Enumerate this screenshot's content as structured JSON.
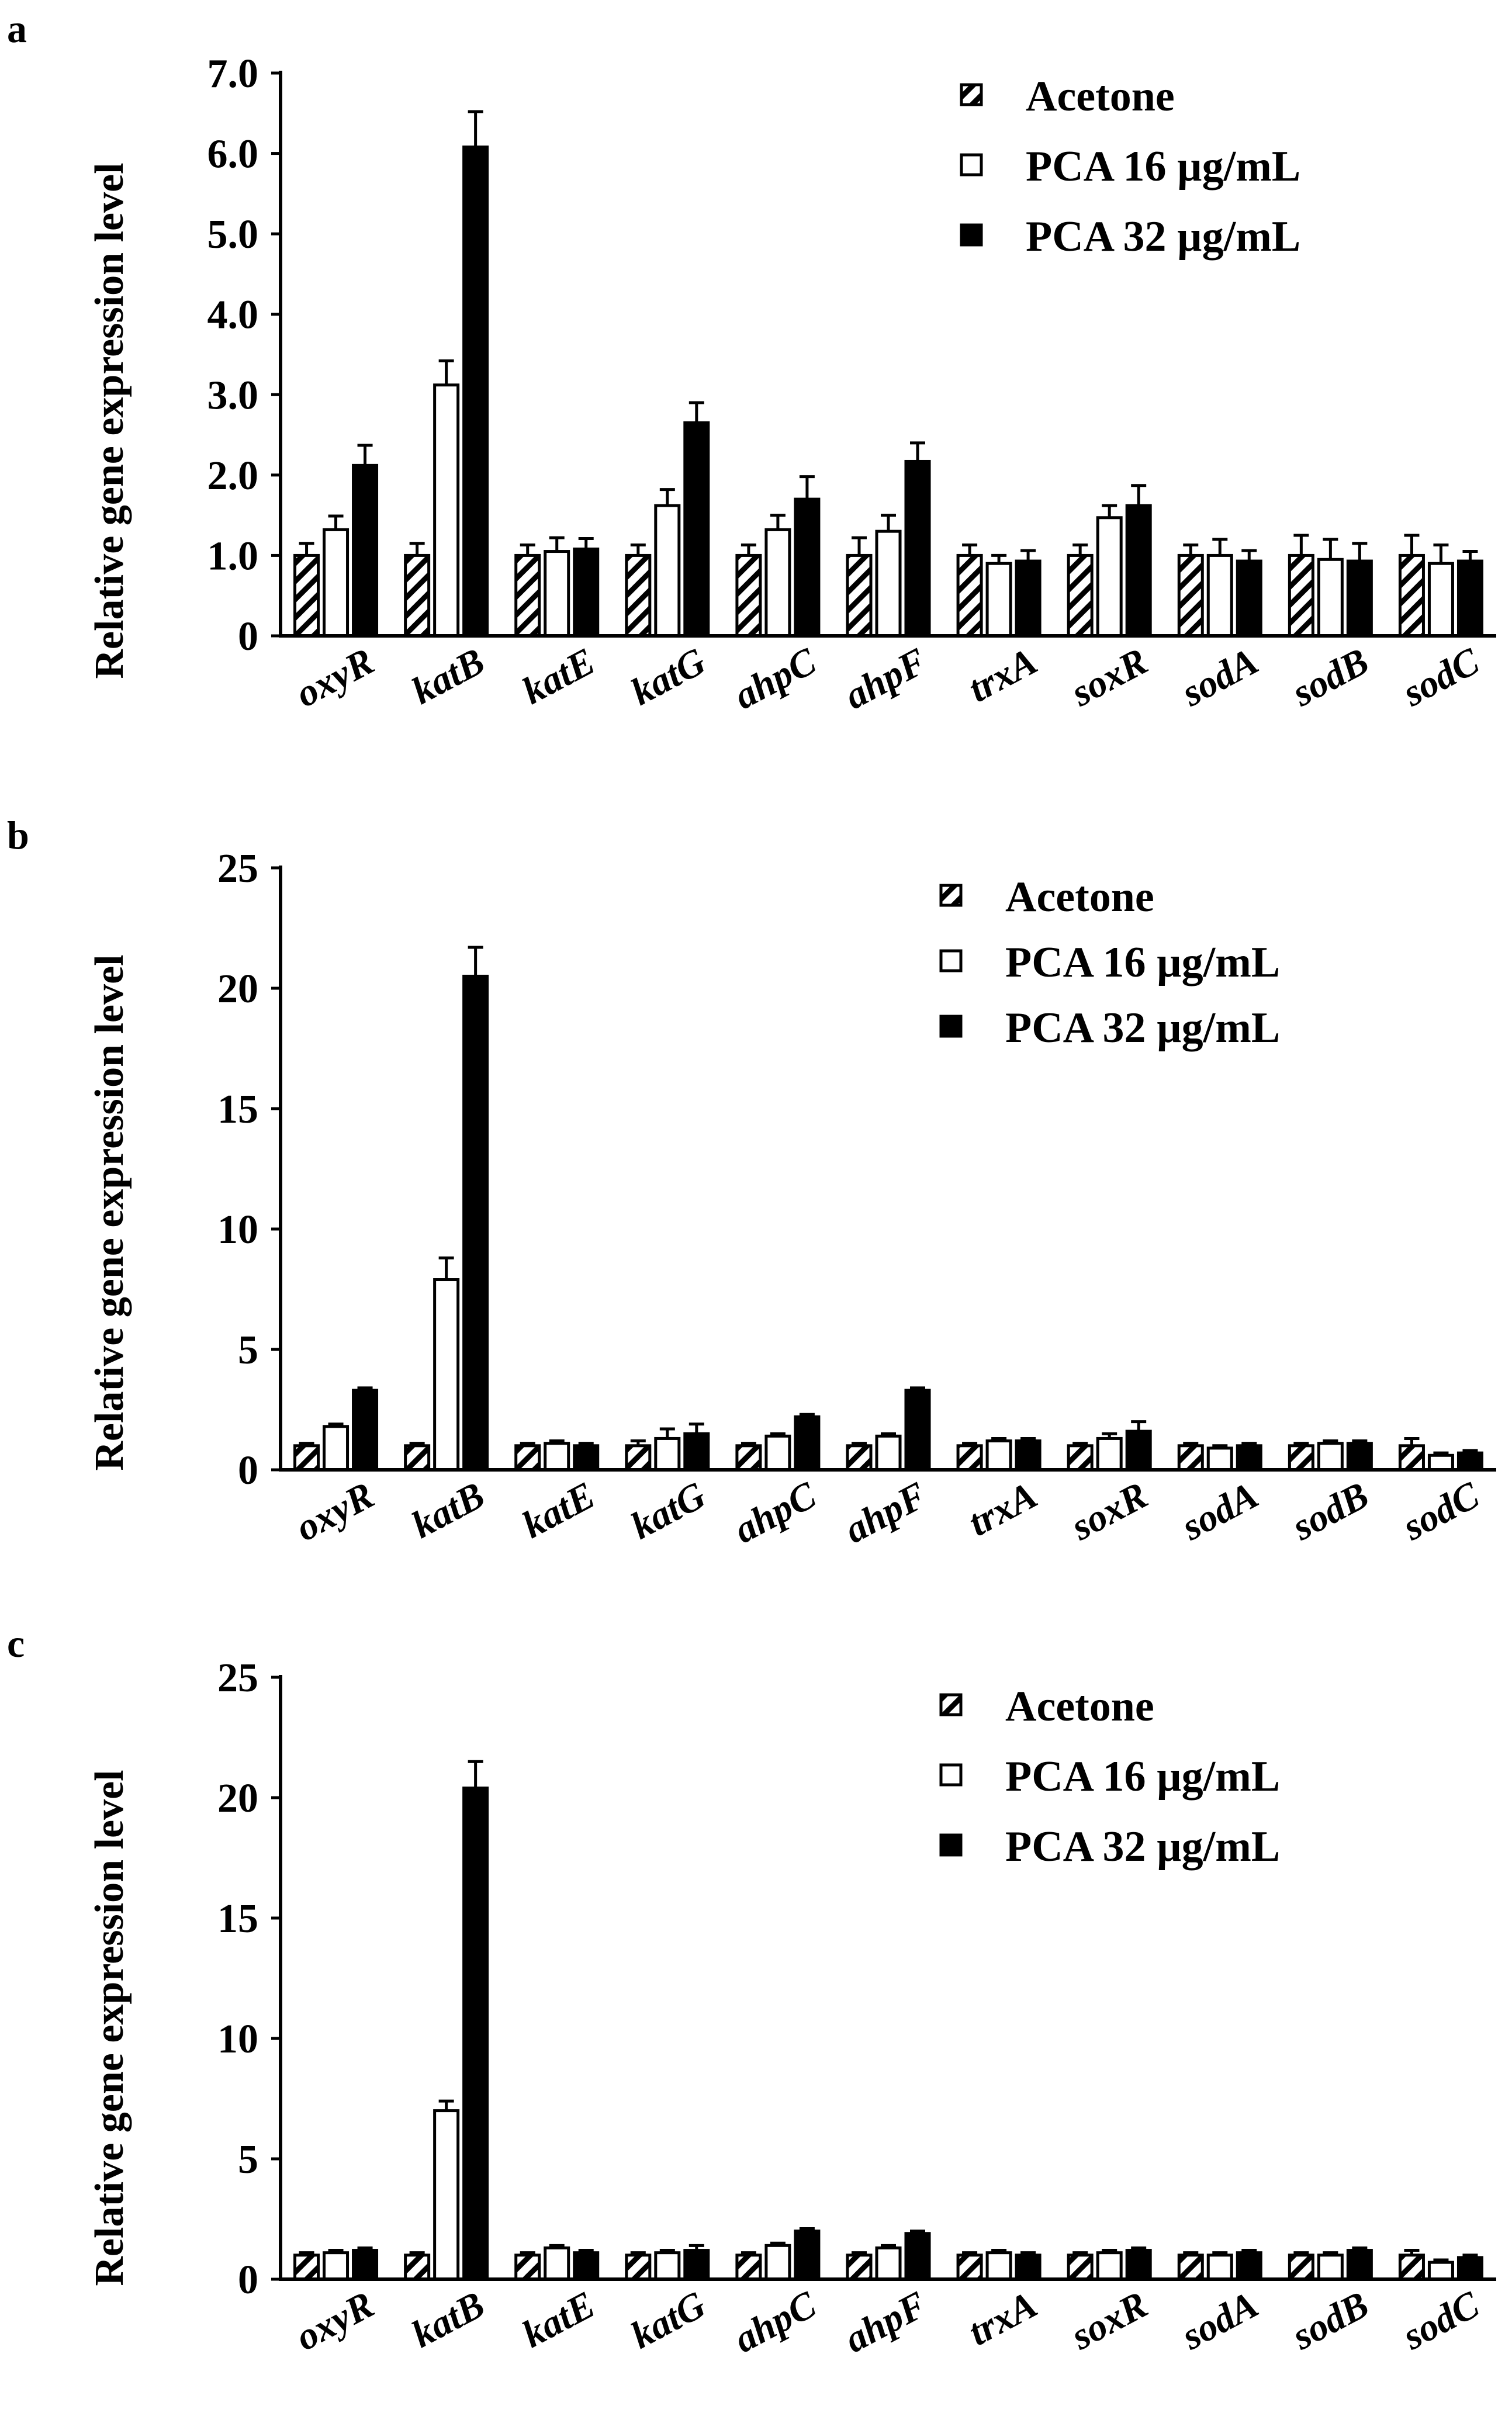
{
  "figure": {
    "genes": [
      "oxyR",
      "katB",
      "katE",
      "katG",
      "ahpC",
      "ahpF",
      "trxA",
      "soxR",
      "sodA",
      "sodB",
      "sodC"
    ],
    "legend": [
      "Acetone",
      "PCA 16 µg/mL",
      "PCA 32 µg/mL"
    ]
  },
  "chart_data": [
    {
      "panel": "a",
      "type": "bar",
      "ylabel": "Relative gene expression level",
      "xlabel": "",
      "ylim": [
        0,
        7
      ],
      "yticks": [
        "0",
        "1.0",
        "2.0",
        "3.0",
        "4.0",
        "5.0",
        "6.0",
        "7.0"
      ],
      "categories": [
        "oxyR",
        "katB",
        "katE",
        "katG",
        "ahpC",
        "ahpF",
        "trxA",
        "soxR",
        "sodA",
        "sodB",
        "sodC"
      ],
      "series": [
        {
          "name": "Acetone",
          "style": "hatched",
          "values": [
            1.0,
            1.0,
            1.0,
            1.0,
            1.0,
            1.0,
            1.0,
            1.0,
            1.0,
            1.0,
            1.0
          ],
          "errors": [
            0.15,
            0.15,
            0.13,
            0.13,
            0.13,
            0.22,
            0.13,
            0.13,
            0.13,
            0.25,
            0.25
          ]
        },
        {
          "name": "PCA 16 µg/mL",
          "style": "open",
          "values": [
            1.32,
            3.12,
            1.05,
            1.62,
            1.32,
            1.3,
            0.9,
            1.47,
            1.0,
            0.95,
            0.9
          ],
          "errors": [
            0.17,
            0.3,
            0.17,
            0.2,
            0.18,
            0.2,
            0.1,
            0.15,
            0.2,
            0.25,
            0.23
          ]
        },
        {
          "name": "PCA 32 µg/mL",
          "style": "solid",
          "values": [
            2.12,
            6.08,
            1.08,
            2.65,
            1.7,
            2.17,
            0.93,
            1.62,
            0.93,
            0.93,
            0.93
          ],
          "errors": [
            0.25,
            0.44,
            0.13,
            0.25,
            0.28,
            0.23,
            0.13,
            0.25,
            0.13,
            0.22,
            0.12
          ]
        }
      ]
    },
    {
      "panel": "b",
      "type": "bar",
      "ylabel": "Relative gene expression level",
      "xlabel": "",
      "ylim": [
        0,
        25
      ],
      "yticks": [
        "0",
        "5",
        "10",
        "15",
        "20",
        "25"
      ],
      "categories": [
        "oxyR",
        "katB",
        "katE",
        "katG",
        "ahpC",
        "ahpF",
        "trxA",
        "soxR",
        "sodA",
        "sodB",
        "sodC"
      ],
      "series": [
        {
          "name": "Acetone",
          "style": "hatched",
          "values": [
            1.0,
            1.0,
            1.0,
            1.0,
            1.0,
            1.0,
            1.0,
            1.0,
            1.0,
            1.0,
            1.0
          ],
          "errors": [
            0.1,
            0.1,
            0.1,
            0.2,
            0.1,
            0.1,
            0.1,
            0.1,
            0.1,
            0.1,
            0.3
          ]
        },
        {
          "name": "PCA 16 µg/mL",
          "style": "open",
          "values": [
            1.8,
            7.9,
            1.1,
            1.3,
            1.4,
            1.4,
            1.2,
            1.3,
            0.9,
            1.1,
            0.6
          ],
          "errors": [
            0.1,
            0.9,
            0.1,
            0.4,
            0.1,
            0.1,
            0.1,
            0.2,
            0.1,
            0.1,
            0.1
          ]
        },
        {
          "name": "PCA 32 µg/mL",
          "style": "solid",
          "values": [
            3.3,
            20.5,
            1.0,
            1.5,
            2.2,
            3.3,
            1.2,
            1.6,
            1.0,
            1.1,
            0.7
          ],
          "errors": [
            0.1,
            1.2,
            0.1,
            0.4,
            0.1,
            0.1,
            0.1,
            0.4,
            0.1,
            0.1,
            0.1
          ]
        }
      ]
    },
    {
      "panel": "c",
      "type": "bar",
      "ylabel": "Relative gene expression level",
      "xlabel": "",
      "ylim": [
        0,
        25
      ],
      "yticks": [
        "0",
        "5",
        "10",
        "15",
        "20",
        "25"
      ],
      "categories": [
        "oxyR",
        "katB",
        "katE",
        "katG",
        "ahpC",
        "ahpF",
        "trxA",
        "soxR",
        "sodA",
        "sodB",
        "sodC"
      ],
      "series": [
        {
          "name": "Acetone",
          "style": "hatched",
          "values": [
            1.0,
            1.0,
            1.0,
            1.0,
            1.0,
            1.0,
            1.0,
            1.0,
            1.0,
            1.0,
            1.0
          ],
          "errors": [
            0.1,
            0.1,
            0.1,
            0.1,
            0.1,
            0.1,
            0.1,
            0.1,
            0.1,
            0.1,
            0.2
          ]
        },
        {
          "name": "PCA 16 µg/mL",
          "style": "open",
          "values": [
            1.1,
            7.0,
            1.3,
            1.1,
            1.4,
            1.3,
            1.1,
            1.1,
            1.0,
            1.0,
            0.7
          ],
          "errors": [
            0.1,
            0.4,
            0.1,
            0.1,
            0.1,
            0.1,
            0.1,
            0.1,
            0.1,
            0.1,
            0.1
          ]
        },
        {
          "name": "PCA 32 µg/mL",
          "style": "solid",
          "values": [
            1.2,
            20.4,
            1.1,
            1.2,
            2.0,
            1.9,
            1.0,
            1.2,
            1.1,
            1.2,
            0.9
          ],
          "errors": [
            0.1,
            1.1,
            0.1,
            0.2,
            0.1,
            0.1,
            0.1,
            0.1,
            0.1,
            0.1,
            0.1
          ]
        }
      ]
    }
  ]
}
